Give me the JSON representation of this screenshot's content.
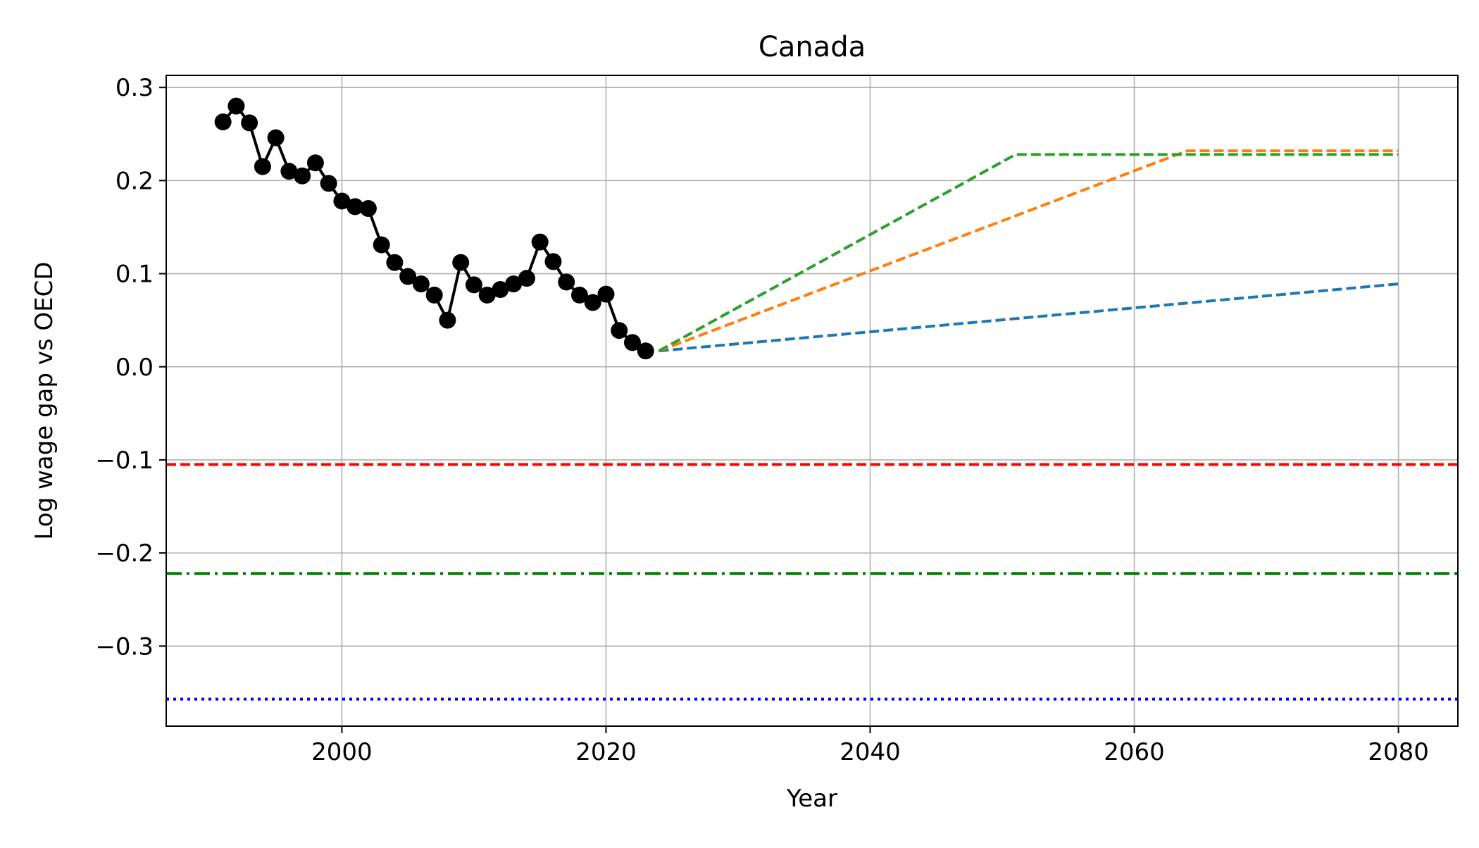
{
  "chart_data": {
    "type": "line",
    "title": "Canada",
    "xlabel": "Year",
    "ylabel": "Log wage gap vs OECD",
    "xlim": [
      1986.7,
      2084.5
    ],
    "ylim": [
      -0.386,
      0.313
    ],
    "x_ticks": [
      2000,
      2020,
      2040,
      2060,
      2080
    ],
    "x_tick_labels": [
      "2000",
      "2020",
      "2040",
      "2060",
      "2080"
    ],
    "y_ticks": [
      0.3,
      0.2,
      0.1,
      0.0,
      -0.1,
      -0.2,
      -0.3
    ],
    "y_tick_labels": [
      "0.3",
      "0.2",
      "0.1",
      "0.0",
      "−0.1",
      "−0.2",
      "−0.3"
    ],
    "grid": true,
    "legend": "none",
    "series": [
      {
        "style": "solid-markers",
        "color": "#000000",
        "x": [
          1991,
          1992,
          1993,
          1994,
          1995,
          1996,
          1997,
          1998,
          1999,
          2000,
          2001,
          2002,
          2003,
          2004,
          2005,
          2006,
          2007,
          2008,
          2009,
          2010,
          2011,
          2012,
          2013,
          2014,
          2015,
          2016,
          2017,
          2018,
          2019,
          2020,
          2021,
          2022,
          2023
        ],
        "y": [
          0.263,
          0.28,
          0.262,
          0.215,
          0.246,
          0.21,
          0.205,
          0.219,
          0.197,
          0.178,
          0.172,
          0.17,
          0.131,
          0.112,
          0.097,
          0.089,
          0.077,
          0.05,
          0.112,
          0.088,
          0.077,
          0.083,
          0.089,
          0.095,
          0.134,
          0.113,
          0.091,
          0.077,
          0.069,
          0.078,
          0.039,
          0.026,
          0.017
        ]
      },
      {
        "style": "dashed",
        "color": "#1f77b4",
        "x": [
          2024,
          2080
        ],
        "y": [
          0.017,
          0.089
        ]
      },
      {
        "style": "dashed",
        "color": "#ff7f0e",
        "x": [
          2024,
          2064,
          2080
        ],
        "y": [
          0.017,
          0.232,
          0.232
        ]
      },
      {
        "style": "dashed",
        "color": "#2ca02c",
        "x": [
          2024,
          2051,
          2080
        ],
        "y": [
          0.017,
          0.228,
          0.228
        ]
      }
    ],
    "reference_lines": [
      {
        "y": -0.105,
        "color": "#ff0000",
        "style": "dashed"
      },
      {
        "y": -0.222,
        "color": "#008000",
        "style": "dashdot"
      },
      {
        "y": -0.357,
        "color": "#0000ff",
        "style": "dotted"
      }
    ]
  }
}
